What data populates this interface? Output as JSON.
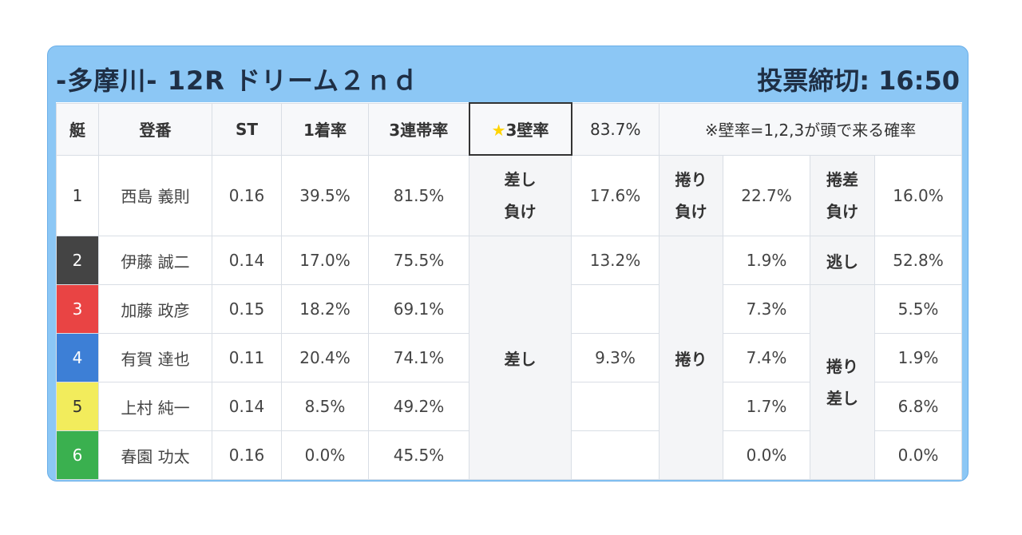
{
  "header": {
    "title": "-多摩川- 12R ドリーム２ｎｄ",
    "deadline": "投票締切: 16:50"
  },
  "table": {
    "columns": {
      "boat": "艇",
      "name": "登番",
      "st": "ST",
      "win": "1着率",
      "top3": "3連帯率",
      "wall_label": "3壁率",
      "wall_value": "83.7%",
      "wall_note": "※壁率=1,2,3が頭で来る確率"
    },
    "boat1": {
      "no": "1",
      "name": "西島 義則",
      "st": "0.16",
      "win": "39.5%",
      "top3": "81.5%",
      "pattern1": "差し負け",
      "pattern1_a": "差し",
      "pattern1_b": "負け",
      "value1": "17.6%",
      "pattern2_a": "捲り",
      "pattern2_b": "負け",
      "value2": "22.7%",
      "pattern3_a": "捲差",
      "pattern3_b": "負け",
      "value3": "16.0%"
    },
    "rows": [
      {
        "no": "2",
        "name": "伊藤 誠二",
        "st": "0.14",
        "win": "17.0%",
        "top3": "75.5%",
        "sashi": "13.2%",
        "makuri": "1.9%",
        "third": "52.8%"
      },
      {
        "no": "3",
        "name": "加藤 政彦",
        "st": "0.15",
        "win": "18.2%",
        "top3": "69.1%",
        "sashi": "",
        "makuri": "7.3%",
        "third": "5.5%"
      },
      {
        "no": "4",
        "name": "有賀 達也",
        "st": "0.11",
        "win": "20.4%",
        "top3": "74.1%",
        "sashi": "9.3%",
        "makuri": "7.4%",
        "third": "1.9%"
      },
      {
        "no": "5",
        "name": "上村 純一",
        "st": "0.14",
        "win": "8.5%",
        "top3": "49.2%",
        "sashi": "",
        "makuri": "1.7%",
        "third": "6.8%"
      },
      {
        "no": "6",
        "name": "春園 功太",
        "st": "0.16",
        "win": "0.0%",
        "top3": "45.5%",
        "sashi": "",
        "makuri": "0.0%",
        "third": "0.0%"
      }
    ],
    "labels": {
      "sashi": "差し",
      "makuri": "捲り",
      "nige": "逃し",
      "makuri_sashi_a": "捲り",
      "makuri_sashi_b": "差し"
    }
  },
  "colors": {
    "card_bg": "#8cc7f5",
    "wall_bg": "#f0a020",
    "boat2": "#444444",
    "boat3": "#e94444",
    "boat4": "#3d7fd6",
    "boat5": "#f2ec5c",
    "boat6": "#3ab04f"
  }
}
